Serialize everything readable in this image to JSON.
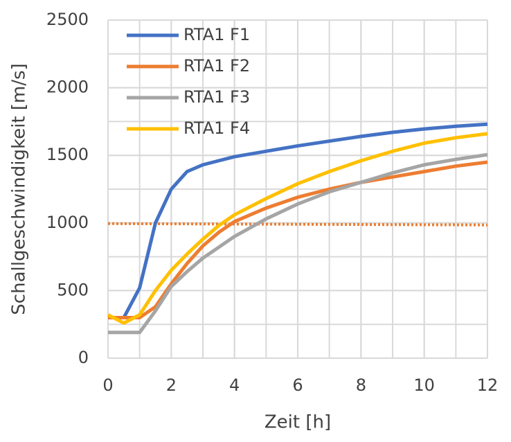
{
  "chart_data": {
    "type": "line",
    "xlabel": "Zeit [h]",
    "ylabel": "Schallgeschwindigkeit [m/s]",
    "x": [
      0,
      0.5,
      1,
      1.5,
      2,
      2.5,
      3,
      3.5,
      4,
      5,
      6,
      7,
      8,
      9,
      10,
      11,
      12
    ],
    "series": [
      {
        "name": "RTA1 F1",
        "color": "#4472c4",
        "values": [
          300,
          300,
          520,
          1000,
          1250,
          1380,
          1430,
          1460,
          1490,
          1530,
          1570,
          1605,
          1640,
          1670,
          1695,
          1715,
          1730
        ]
      },
      {
        "name": "RTA1 F2",
        "color": "#ed7d31",
        "values": [
          300,
          300,
          300,
          380,
          550,
          700,
          830,
          930,
          1010,
          1110,
          1190,
          1250,
          1300,
          1340,
          1380,
          1420,
          1450
        ]
      },
      {
        "name": "RTA1 F3",
        "color": "#a5a5a5",
        "values": [
          190,
          190,
          190,
          350,
          530,
          640,
          740,
          820,
          900,
          1030,
          1140,
          1230,
          1300,
          1370,
          1430,
          1470,
          1505
        ]
      },
      {
        "name": "RTA1 F4",
        "color": "#ffc000",
        "values": [
          320,
          260,
          320,
          500,
          650,
          770,
          880,
          980,
          1060,
          1180,
          1290,
          1380,
          1460,
          1530,
          1590,
          1630,
          1660
        ]
      }
    ],
    "reference_line": {
      "color": "#ed7d31",
      "values": [
        995,
        985
      ]
    },
    "xlim": [
      0,
      12
    ],
    "xticks": [
      0,
      2,
      4,
      6,
      8,
      10,
      12
    ],
    "ylim": [
      0,
      2500
    ],
    "yticks": [
      0,
      500,
      1000,
      1500,
      2000,
      2500
    ],
    "grid": true,
    "xgrid_step": 1,
    "ygrid_step": 250,
    "legend": "upper left"
  }
}
